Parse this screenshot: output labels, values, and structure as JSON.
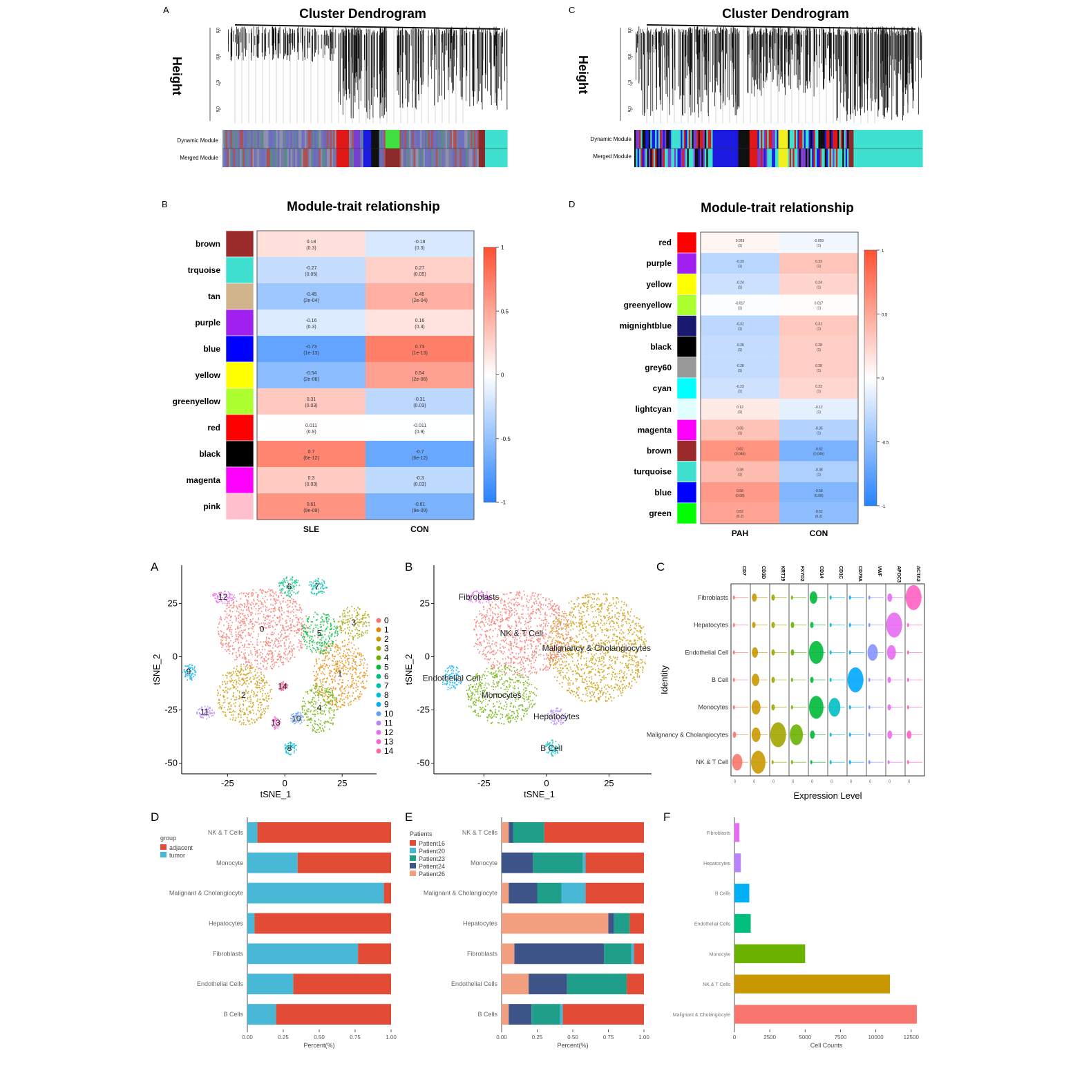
{
  "chart_data": [
    {
      "panel": "A",
      "type": "dendrogram",
      "title": "Cluster Dendrogram",
      "ylabel": "Height",
      "yticks": [
        "0.6",
        "0.7",
        "0.8",
        "0.9"
      ],
      "row_labels": [
        "Dynamic Module",
        "Merged Module"
      ],
      "color_bar": [
        "#7a7aa8",
        "#5a8a8a",
        "#9090b0",
        "#b05050",
        "#6a6ab5",
        "#7070c0",
        "#e01818",
        "#7a3fd0",
        "#1a1ae0",
        "#cfcf30",
        "#101010",
        "#40e0d0",
        "#8b2a2a",
        "#3fe03f",
        "#40e0d0"
      ]
    },
    {
      "panel": "C",
      "type": "dendrogram",
      "title": "Cluster Dendrogram",
      "ylabel": "Height",
      "yticks": [
        "0.6",
        "0.7",
        "0.8",
        "0.9"
      ],
      "row_labels": [
        "Dynamic Module",
        "Merged Module"
      ],
      "color_bar": [
        "#40e0d0",
        "#7a3fd0",
        "#40e0d0",
        "#1a1ae0",
        "#101010",
        "#e01818",
        "#8b2a2a",
        "#40e0d0",
        "#f0f020",
        "#40e0d0",
        "#8b2a2a",
        "#40e0d0"
      ]
    },
    {
      "panel": "B",
      "type": "heatmap",
      "title": "Module-trait relationship",
      "columns": [
        "SLE",
        "CON"
      ],
      "legend_ticks": [
        "1",
        "0.5",
        "0",
        "-0.5",
        "-1"
      ],
      "rows": [
        {
          "module": "brown",
          "color": "#9b2a2a",
          "values": [
            0.18,
            -0.18
          ],
          "labels": [
            "0.18\n(0.3)",
            "-0.18\n(0.3)"
          ]
        },
        {
          "module": "trquoise",
          "color": "#40e0d0",
          "values": [
            -0.27,
            0.27
          ],
          "labels": [
            "-0.27\n(0.05)",
            "0.27\n(0.05)"
          ]
        },
        {
          "module": "tan",
          "color": "#d2b48c",
          "values": [
            -0.45,
            0.45
          ],
          "labels": [
            "-0.45\n(2e-04)",
            "0.45\n(2e-04)"
          ]
        },
        {
          "module": "purple",
          "color": "#a020f0",
          "values": [
            -0.16,
            0.16
          ],
          "labels": [
            "-0.16\n(0.3)",
            "0.16\n(0.3)"
          ]
        },
        {
          "module": "blue",
          "color": "#0000ff",
          "values": [
            -0.73,
            0.73
          ],
          "labels": [
            "-0.73\n(1e-13)",
            "0.73\n(1e-13)"
          ]
        },
        {
          "module": "yellow",
          "color": "#ffff00",
          "values": [
            -0.54,
            0.54
          ],
          "labels": [
            "-0.54\n(2e-06)",
            "0.54\n(2e-06)"
          ]
        },
        {
          "module": "greenyellow",
          "color": "#adff2f",
          "values": [
            0.31,
            -0.31
          ],
          "labels": [
            "0.31\n(0.03)",
            "-0.31\n(0.03)"
          ]
        },
        {
          "module": "red",
          "color": "#ff0000",
          "values": [
            0.011,
            -0.011
          ],
          "labels": [
            "0.011\n(0.9)",
            "-0.011\n(0.9)"
          ]
        },
        {
          "module": "black",
          "color": "#000000",
          "values": [
            0.7,
            -0.7
          ],
          "labels": [
            "0.7\n(6e-12)",
            "-0.7\n(6e-12)"
          ]
        },
        {
          "module": "magenta",
          "color": "#ff00ff",
          "values": [
            0.3,
            -0.3
          ],
          "labels": [
            "0.3\n(0.03)",
            "-0.3\n(0.03)"
          ]
        },
        {
          "module": "pink",
          "color": "#ffc0cb",
          "values": [
            0.61,
            -0.61
          ],
          "labels": [
            "0.61\n(9e-09)",
            "-0.61\n(9e-09)"
          ]
        }
      ]
    },
    {
      "panel": "D",
      "type": "heatmap",
      "title": "Module-trait relationship",
      "columns": [
        "PAH",
        "CON"
      ],
      "legend_ticks": [
        "1",
        "0.5",
        "0",
        "-0.5",
        "-1"
      ],
      "rows": [
        {
          "module": "red",
          "color": "#ff0000",
          "values": [
            0.059,
            -0.059
          ],
          "labels": [
            "0.059\n(1)",
            "-0.059\n(1)"
          ]
        },
        {
          "module": "purple",
          "color": "#a020f0",
          "values": [
            -0.33,
            0.33
          ],
          "labels": [
            "-0.33\n(1)",
            "0.33\n(1)"
          ]
        },
        {
          "module": "yellow",
          "color": "#ffff00",
          "values": [
            -0.24,
            0.24
          ],
          "labels": [
            "-0.24\n(1)",
            "0.24\n(1)"
          ]
        },
        {
          "module": "greenyellow",
          "color": "#adff2f",
          "values": [
            -0.017,
            0.017
          ],
          "labels": [
            "-0.017\n(1)",
            "0.017\n(1)"
          ]
        },
        {
          "module": "mignightblue",
          "color": "#191970",
          "values": [
            -0.31,
            0.31
          ],
          "labels": [
            "-0.31\n(1)",
            "0.31\n(1)"
          ]
        },
        {
          "module": "black",
          "color": "#000000",
          "values": [
            -0.28,
            0.28
          ],
          "labels": [
            "-0.28\n(1)",
            "0.28\n(1)"
          ]
        },
        {
          "module": "grey60",
          "color": "#999999",
          "values": [
            -0.28,
            0.28
          ],
          "labels": [
            "-0.28\n(1)",
            "0.28\n(1)"
          ]
        },
        {
          "module": "cyan",
          "color": "#00ffff",
          "values": [
            -0.23,
            0.23
          ],
          "labels": [
            "-0.23\n(1)",
            "0.23\n(1)"
          ]
        },
        {
          "module": "lightcyan",
          "color": "#e0ffff",
          "values": [
            0.12,
            -0.12
          ],
          "labels": [
            "0.12\n(1)",
            "-0.12\n(1)"
          ]
        },
        {
          "module": "magenta",
          "color": "#ff00ff",
          "values": [
            0.35,
            -0.35
          ],
          "labels": [
            "0.35\n(1)",
            "-0.35\n(1)"
          ]
        },
        {
          "module": "brown",
          "color": "#9b2a2a",
          "values": [
            0.62,
            -0.62
          ],
          "labels": [
            "0.62\n(0.046)",
            "-0.62\n(0.046)"
          ]
        },
        {
          "module": "turquoise",
          "color": "#40e0d0",
          "values": [
            0.38,
            -0.38
          ],
          "labels": [
            "0.38\n(1)",
            "-0.38\n(1)"
          ]
        },
        {
          "module": "blue",
          "color": "#0000ff",
          "values": [
            0.58,
            -0.58
          ],
          "labels": [
            "0.58\n(0.08)",
            "-0.58\n(0.08)"
          ]
        },
        {
          "module": "green",
          "color": "#00ff00",
          "values": [
            0.52,
            -0.52
          ],
          "labels": [
            "0.52\n(0.2)",
            "-0.52\n(0.2)"
          ]
        }
      ]
    },
    {
      "panel": "A",
      "type": "scatter",
      "xlabel": "tSNE_1",
      "ylabel": "tSNE_2",
      "xticks": [
        -25,
        0,
        25
      ],
      "yticks": [
        25,
        0,
        -25,
        -50
      ],
      "xlim": [
        -45,
        40
      ],
      "ylim": [
        -55,
        43
      ],
      "legend": [
        "0",
        "1",
        "2",
        "3",
        "4",
        "5",
        "6",
        "7",
        "8",
        "9",
        "10",
        "11",
        "12",
        "13",
        "14"
      ],
      "legend_colors": [
        "#f8766d",
        "#e58700",
        "#c99800",
        "#a3a500",
        "#6bb100",
        "#00ba38",
        "#00bf7d",
        "#00c0af",
        "#00bcd8",
        "#00b0f6",
        "#619cff",
        "#b983ff",
        "#e76bf3",
        "#fd61d1",
        "#ff67a4"
      ],
      "clusters": [
        {
          "id": "0",
          "x": -10,
          "y": 13,
          "rx": 20,
          "ry": 19,
          "color": "#f8766d"
        },
        {
          "id": "1",
          "x": 24,
          "y": -8,
          "rx": 12,
          "ry": 16,
          "color": "#e58700"
        },
        {
          "id": "2",
          "x": -18,
          "y": -18,
          "rx": 12,
          "ry": 14,
          "color": "#c99800"
        },
        {
          "id": "3",
          "x": 30,
          "y": 16,
          "rx": 7,
          "ry": 8,
          "color": "#a3a500"
        },
        {
          "id": "4",
          "x": 15,
          "y": -24,
          "rx": 8,
          "ry": 12,
          "color": "#6bb100"
        },
        {
          "id": "5",
          "x": 15,
          "y": 11,
          "rx": 8,
          "ry": 10,
          "color": "#00ba38"
        },
        {
          "id": "6",
          "x": 2,
          "y": 33,
          "rx": 5,
          "ry": 5,
          "color": "#00bf7d"
        },
        {
          "id": "7",
          "x": 14,
          "y": 33,
          "rx": 4,
          "ry": 4,
          "color": "#00c0af"
        },
        {
          "id": "8",
          "x": 2,
          "y": -43,
          "rx": 3,
          "ry": 3,
          "color": "#00bcd8"
        },
        {
          "id": "9",
          "x": -42,
          "y": -7,
          "rx": 3,
          "ry": 4,
          "color": "#00b0f6"
        },
        {
          "id": "10",
          "x": 5,
          "y": -29,
          "rx": 3,
          "ry": 3,
          "color": "#619cff"
        },
        {
          "id": "11",
          "x": -35,
          "y": -26,
          "rx": 4,
          "ry": 3,
          "color": "#b983ff"
        },
        {
          "id": "12",
          "x": -27,
          "y": 28,
          "rx": 5,
          "ry": 3,
          "color": "#e76bf3"
        },
        {
          "id": "13",
          "x": -4,
          "y": -31,
          "rx": 2,
          "ry": 3,
          "color": "#fd61d1"
        },
        {
          "id": "14",
          "x": -1,
          "y": -14,
          "rx": 2,
          "ry": 2,
          "color": "#ff67a4"
        }
      ]
    },
    {
      "panel": "B",
      "type": "scatter",
      "xlabel": "tSNE_1",
      "ylabel": "tSNE_2",
      "xticks": [
        -25,
        0,
        25
      ],
      "yticks": [
        25,
        0,
        -25,
        -50
      ],
      "xlim": [
        -45,
        42
      ],
      "ylim": [
        -55,
        43
      ],
      "clusters": [
        {
          "label": "Fibroblasts",
          "x": -27,
          "y": 28,
          "rx": 5,
          "ry": 3,
          "color": "#e76bf3"
        },
        {
          "label": "NK & T Cell",
          "x": -10,
          "y": 11,
          "rx": 20,
          "ry": 20,
          "color": "#f8766d"
        },
        {
          "label": "Malignancy & Cholangiocytes",
          "x": 20,
          "y": 4,
          "rx": 20,
          "ry": 26,
          "color": "#c99800"
        },
        {
          "label": "Endothelial Cell",
          "x": -38,
          "y": -10,
          "rx": 4,
          "ry": 6,
          "color": "#00b0f6"
        },
        {
          "label": "Monocytes",
          "x": -18,
          "y": -18,
          "rx": 14,
          "ry": 14,
          "color": "#6bb100"
        },
        {
          "label": "Hepatocytes",
          "x": 4,
          "y": -28,
          "rx": 4,
          "ry": 4,
          "color": "#b983ff"
        },
        {
          "label": "B Cell",
          "x": 2,
          "y": -43,
          "rx": 3,
          "ry": 4,
          "color": "#00bfc4"
        }
      ]
    },
    {
      "panel": "C",
      "type": "violin",
      "xlabel": "Expression Level",
      "ylabel": "Identity",
      "genes": [
        "CD7",
        "CD3D",
        "KRT19",
        "FXYD2",
        "CD14",
        "CD1C",
        "CD79A",
        "VWF",
        "APOC3",
        "ACTA2"
      ],
      "identities": [
        "Fibroblasts",
        "Hepatocytes",
        "Endothelial Cell",
        "B Cell",
        "Monocytes",
        "Malignancy & Cholangiocytes",
        "NK & T Cell"
      ],
      "gene_colors": [
        "#f8766d",
        "#c99800",
        "#a3a500",
        "#6bb100",
        "#00ba38",
        "#00bfc4",
        "#00a9ff",
        "#8494ff",
        "#e76bf3",
        "#ff61c3"
      ],
      "high": [
        [
          0,
          0.2,
          0.1,
          0,
          0.4,
          0,
          0,
          0,
          0.2,
          1
        ],
        [
          0,
          0.1,
          0.1,
          0.1,
          0.1,
          0,
          0,
          0,
          1,
          0
        ],
        [
          0,
          0.3,
          0.1,
          0.1,
          0.9,
          0,
          0,
          0.6,
          0.5,
          0
        ],
        [
          0,
          0.4,
          0.1,
          0,
          0.1,
          0,
          1,
          0,
          0.1,
          0
        ],
        [
          0,
          0.5,
          0.1,
          0,
          0.9,
          0.7,
          0,
          0,
          0.1,
          0
        ],
        [
          0.1,
          0.5,
          1,
          0.8,
          0.2,
          0,
          0,
          0,
          0.2,
          0.2
        ],
        [
          0.6,
          0.9,
          0,
          0,
          0,
          0,
          0,
          0,
          0,
          0
        ]
      ]
    },
    {
      "panel": "D",
      "type": "bar",
      "orientation": "horizontal-stacked",
      "xlabel": "Percent(%)",
      "xticks": [
        "0.00",
        "0.25",
        "0.50",
        "0.75",
        "1.00"
      ],
      "legend_title": "group",
      "categories": [
        "NK & T Cells",
        "Monocyte",
        "Malignant & Cholangiocyte",
        "Hepatocytes",
        "Fibroblasts",
        "Endothelial Cells",
        "B Cells"
      ],
      "series": [
        {
          "name": "tumor",
          "color": "#48b8d6",
          "values": [
            0.07,
            0.35,
            0.95,
            0.05,
            0.77,
            0.32,
            0.2
          ]
        },
        {
          "name": "adjacent",
          "color": "#e24b35",
          "values": [
            0.93,
            0.65,
            0.05,
            0.95,
            0.23,
            0.68,
            0.8
          ]
        }
      ]
    },
    {
      "panel": "E",
      "type": "bar",
      "orientation": "horizontal-stacked",
      "xlabel": "Percent(%)",
      "xticks": [
        "0.00",
        "0.25",
        "0.50",
        "0.75",
        "1.00"
      ],
      "legend_title": "Patients",
      "categories": [
        "NK & T Cells",
        "Monocyte",
        "Malignant & Cholangiocyte",
        "Hepatocytes",
        "Fibroblasts",
        "Endothelial Cells",
        "B Cells"
      ],
      "series": [
        {
          "name": "Patient26",
          "color": "#f29f80",
          "values": [
            0.05,
            0.0,
            0.05,
            0.75,
            0.09,
            0.19,
            0.05
          ]
        },
        {
          "name": "Patient24",
          "color": "#3c5488",
          "values": [
            0.03,
            0.22,
            0.2,
            0.04,
            0.63,
            0.27,
            0.16
          ]
        },
        {
          "name": "Patient23",
          "color": "#1f9e89",
          "values": [
            0.22,
            0.35,
            0.17,
            0.11,
            0.19,
            0.42,
            0.2
          ]
        },
        {
          "name": "Patient20",
          "color": "#48b8d6",
          "values": [
            0.0,
            0.02,
            0.17,
            0.0,
            0.02,
            0.0,
            0.02
          ]
        },
        {
          "name": "Patient16",
          "color": "#e24b35",
          "values": [
            0.7,
            0.41,
            0.41,
            0.1,
            0.07,
            0.12,
            0.57
          ]
        }
      ]
    },
    {
      "panel": "F",
      "type": "bar",
      "orientation": "horizontal",
      "xlabel": "Cell Counts",
      "xticks": [
        "0",
        "2500",
        "5000",
        "7500",
        "10000",
        "12500"
      ],
      "xlim": [
        0,
        13000
      ],
      "categories": [
        "Fibroblasts",
        "Hepatocytes",
        "B Cells",
        "Endothelial Cells",
        "Monocyte",
        "NK & T Cells",
        "Malignant & Cholangiocyte"
      ],
      "values": [
        350,
        450,
        1050,
        1150,
        5000,
        11000,
        12900
      ],
      "colors": [
        "#e76bf3",
        "#b983ff",
        "#00b0f6",
        "#00bf7d",
        "#6bb100",
        "#c99800",
        "#f8766d"
      ]
    }
  ],
  "figure_labels": {
    "wgcna_a": "A",
    "wgcna_c": "C",
    "wgcna_b": "B",
    "wgcna_d": "D",
    "sc_a": "A",
    "sc_b": "B",
    "sc_c": "C",
    "sc_d": "D",
    "sc_e": "E",
    "sc_f": "F"
  }
}
